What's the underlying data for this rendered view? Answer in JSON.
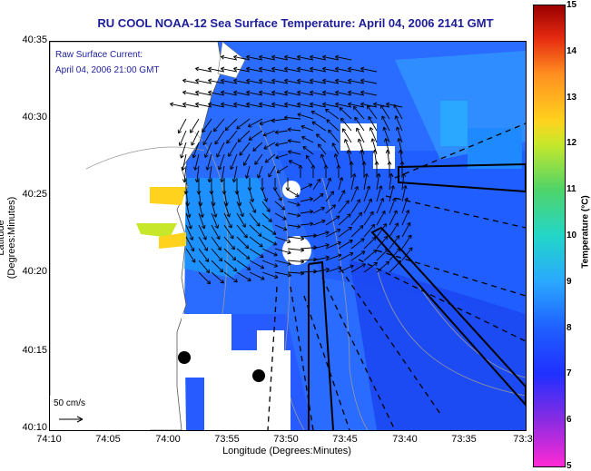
{
  "title": "RU COOL  NOAA-12  Sea Surface Temperature:  April 04, 2006 2141 GMT",
  "current_label": "Raw Surface Current:",
  "current_time": "April 04, 2006 21:00 GMT",
  "scale_label": "50 cm/s",
  "x_axis_label": "Longitude (Degrees:Minutes)",
  "y_axis_label": "Latitude (Degrees:Minutes)",
  "x_ticks": [
    "74:10",
    "74:05",
    "74:00",
    "73:55",
    "73:50",
    "73:45",
    "73:40",
    "73:35",
    "73:3"
  ],
  "y_ticks": [
    "40:35",
    "40:30",
    "40:25",
    "40:20",
    "40:15",
    "40:10"
  ],
  "colorbar": {
    "label": "Temperature (°C)",
    "ticks": [
      "15",
      "14",
      "13",
      "12",
      "11",
      "10",
      "9",
      "8",
      "7",
      "6",
      "5"
    ],
    "colors": [
      "#ff2ad4",
      "#8a2be2",
      "#2030ff",
      "#1f5fff",
      "#2aa8ff",
      "#22d6c8",
      "#4fd46a",
      "#c7e82a",
      "#ffd21e",
      "#ff9020",
      "#e52a10",
      "#9a0000"
    ]
  }
}
